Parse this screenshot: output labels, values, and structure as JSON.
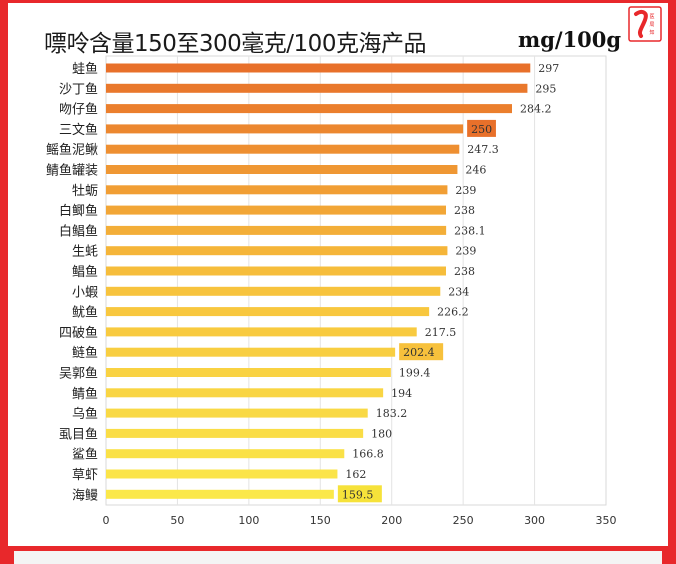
{
  "title": "嘌呤含量150至300毫克/100克海产品",
  "unit": "mg/100g",
  "logo_text": "医局知",
  "colors": {
    "frame": "#e8282b",
    "bar_top": "#e8702a",
    "bar_mid": "#f7c13c",
    "bar_bottom": "#fbe84a",
    "highlight_box": "#e8702a",
    "highlight_box_low": "#f6e23a"
  },
  "chart_data": {
    "type": "bar",
    "orientation": "horizontal",
    "categories": [
      "蛙鱼",
      "沙丁鱼",
      "吻仔鱼",
      "三文鱼",
      "鳐鱼泥鳅",
      "鲭鱼罐装",
      "牡蛎",
      "白鲫鱼",
      "白鲳鱼",
      "生蚝",
      "鲳鱼",
      "小蝦",
      "鱿鱼",
      "四破鱼",
      "鲢鱼",
      "吴郭鱼",
      "鲭鱼",
      "乌鱼",
      "虱目鱼",
      "鲨鱼",
      "草虾",
      "海鳗"
    ],
    "values": [
      297,
      295,
      284.2,
      250,
      247.3,
      246,
      239,
      238,
      238.1,
      239,
      238,
      234,
      226.2,
      217.5,
      202.4,
      199.4,
      194,
      183.2,
      180,
      166.8,
      162,
      159.5
    ],
    "value_labels": [
      "297",
      "295",
      "284.2",
      "250",
      "247.3",
      "246",
      "239",
      "238",
      "238.1",
      "239",
      "238",
      "234",
      "226.2",
      "217.5",
      "202.4",
      "199.4",
      "194",
      "183.2",
      "180",
      "166.8",
      "162",
      "159.5"
    ],
    "highlighted": [
      "三文鱼",
      "鲢鱼",
      "海鳗"
    ],
    "xlim": [
      0,
      350
    ],
    "xticks": [
      "0",
      "50",
      "100",
      "150",
      "200",
      "250",
      "300",
      "350"
    ],
    "grid": true,
    "legend": "none"
  }
}
